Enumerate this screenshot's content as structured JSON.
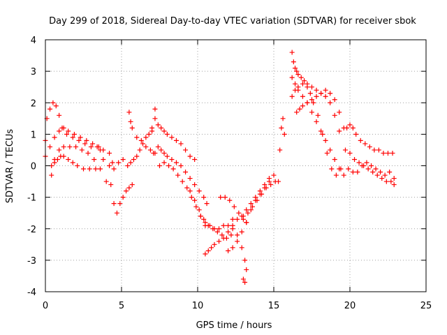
{
  "chart_data": {
    "type": "scatter",
    "title": "Day 299 of 2018, Sidereal Day-to-day VTEC variation (SDTVAR) for receiver sbok",
    "xlabel": "GPS time / hours",
    "ylabel": "SDTVAR / TECUs",
    "xlim": [
      0,
      25
    ],
    "ylim": [
      -4,
      4
    ],
    "xticks": [
      0,
      5,
      10,
      15,
      20,
      25
    ],
    "yticks": [
      -4,
      -3,
      -2,
      -1,
      0,
      1,
      2,
      3,
      4
    ],
    "grid": true,
    "marker": "+",
    "series": [
      {
        "name": "sbok",
        "color": "#ff0000",
        "x": [
          0.0,
          0.1,
          0.3,
          0.5,
          0.7,
          0.9,
          1.1,
          1.4,
          1.8,
          2.2,
          2.6,
          3.0,
          3.4,
          3.8,
          4.2,
          0.0,
          0.3,
          0.6,
          0.9,
          1.2,
          1.5,
          1.9,
          2.3,
          2.7,
          3.1,
          3.5,
          0.4,
          0.6,
          0.8,
          1.0,
          1.2,
          1.5,
          1.8,
          2.1,
          2.5,
          2.9,
          3.3,
          3.6,
          0.4,
          0.6,
          0.9,
          1.2,
          1.6,
          2.0,
          2.4,
          2.8,
          3.2,
          3.6,
          3.8,
          4.0,
          4.3,
          4.4,
          4.5,
          4.7,
          4.9,
          5.1,
          5.3,
          5.5,
          5.7,
          4.2,
          4.5,
          4.8,
          5.1,
          5.4,
          5.6,
          5.8,
          6.0,
          6.2,
          6.4,
          6.6,
          6.8,
          7.0,
          5.5,
          5.6,
          5.7,
          6.0,
          6.3,
          6.6,
          6.9,
          7.1,
          7.2,
          7.0,
          7.2,
          7.4,
          7.6,
          7.8,
          8.0,
          8.3,
          8.6,
          8.9,
          9.2,
          9.5,
          9.8,
          7.2,
          7.4,
          7.6,
          7.8,
          8.0,
          8.3,
          8.6,
          8.9,
          9.2,
          9.5,
          9.8,
          10.1,
          10.4,
          10.6,
          7.5,
          7.8,
          8.1,
          8.4,
          8.7,
          9.0,
          9.3,
          9.6,
          9.9,
          10.2,
          10.5,
          9.5,
          9.8,
          10.1,
          10.4,
          10.7,
          11.0,
          11.3,
          11.6,
          11.9,
          12.2,
          10.5,
          10.7,
          10.9,
          11.1,
          11.4,
          11.7,
          12.0,
          12.3,
          10.2,
          10.5,
          10.8,
          11.1,
          11.4,
          11.7,
          12.0,
          12.3,
          12.6,
          12.9,
          13.1,
          11.5,
          11.8,
          12.1,
          12.4,
          12.7,
          13.0,
          13.2,
          13.0,
          13.1,
          13.2,
          12.0,
          12.3,
          12.6,
          12.9,
          13.2,
          13.5,
          13.8,
          14.1,
          14.4,
          14.7,
          15.0,
          12.3,
          12.6,
          12.9,
          13.2,
          13.5,
          13.8,
          14.1,
          14.4,
          14.7,
          13.0,
          13.3,
          13.6,
          13.9,
          14.2,
          14.5,
          14.8,
          15.1,
          15.3,
          15.4,
          15.5,
          15.6,
          15.7,
          16.2,
          16.3,
          16.4,
          16.5,
          16.6,
          16.8,
          17.0,
          17.2,
          17.4,
          17.6,
          17.9,
          18.2,
          18.5,
          18.8,
          19.1,
          19.4,
          16.2,
          16.4,
          16.6,
          16.9,
          17.2,
          17.5,
          17.8,
          18.1,
          18.4,
          18.7,
          19.0,
          19.3,
          19.6,
          16.5,
          16.7,
          16.9,
          17.2,
          17.5,
          17.8,
          18.1,
          18.4,
          18.7,
          19.0,
          19.3,
          19.6,
          16.2,
          16.4,
          16.6,
          16.9,
          17.2,
          17.5,
          17.8,
          18.1,
          18.4,
          18.7,
          19.0,
          19.3,
          19.8,
          20.0,
          20.2,
          20.4,
          20.7,
          21.0,
          21.3,
          21.6,
          21.9,
          22.2,
          22.5,
          22.8,
          19.7,
          20.0,
          20.3,
          20.6,
          20.9,
          21.2,
          21.5,
          21.8,
          22.1,
          22.4,
          22.7,
          22.9,
          19.9,
          20.2,
          20.5,
          20.8,
          21.1,
          21.4,
          21.7,
          22.0,
          22.3,
          22.6,
          22.9
        ],
        "y": [
          0.8,
          1.5,
          1.8,
          2.0,
          1.9,
          1.6,
          1.2,
          1.0,
          0.9,
          0.8,
          0.7,
          0.6,
          0.6,
          0.5,
          0.4,
          0.3,
          0.6,
          0.9,
          1.1,
          1.2,
          1.1,
          1.0,
          0.9,
          0.8,
          0.7,
          0.6,
          0.0,
          0.1,
          0.2,
          0.3,
          0.3,
          0.2,
          0.1,
          0.0,
          -0.1,
          -0.1,
          -0.1,
          -0.1,
          -0.3,
          0.2,
          0.5,
          0.6,
          0.6,
          0.6,
          0.5,
          0.4,
          0.2,
          0.5,
          0.2,
          -0.5,
          -0.6,
          0.1,
          -1.2,
          -1.5,
          -1.2,
          -1.0,
          -0.8,
          -0.7,
          -0.6,
          0.0,
          -0.1,
          0.1,
          0.2,
          0.0,
          0.1,
          0.2,
          0.3,
          0.5,
          0.7,
          0.9,
          1.0,
          1.1,
          1.7,
          1.4,
          1.2,
          0.9,
          0.8,
          0.6,
          0.5,
          0.4,
          1.8,
          1.2,
          1.5,
          1.3,
          1.2,
          1.1,
          1.0,
          0.9,
          0.8,
          0.7,
          0.5,
          0.3,
          0.2,
          0.4,
          0.6,
          0.5,
          0.4,
          0.3,
          0.2,
          0.1,
          0.0,
          -0.2,
          -0.4,
          -0.6,
          -0.8,
          -1.0,
          -1.2,
          0.0,
          0.1,
          0.0,
          -0.1,
          -0.3,
          -0.5,
          -0.7,
          -1.0,
          -1.3,
          -1.6,
          -1.9,
          -0.8,
          -1.1,
          -1.4,
          -1.7,
          -1.9,
          -2.0,
          -2.1,
          -2.2,
          -2.3,
          -2.2,
          -2.8,
          -2.7,
          -2.6,
          -2.5,
          -2.4,
          -2.3,
          -2.1,
          -1.9,
          -1.6,
          -1.8,
          -1.9,
          -2.0,
          -2.0,
          -1.9,
          -1.9,
          -2.0,
          -2.2,
          -2.6,
          -3.0,
          -1.0,
          -1.0,
          -1.1,
          -1.3,
          -1.5,
          -1.7,
          -1.8,
          -3.6,
          -3.7,
          -3.3,
          -2.7,
          -2.6,
          -2.4,
          -2.1,
          -1.8,
          -1.4,
          -1.1,
          -0.9,
          -0.7,
          -0.5,
          -0.3,
          -1.7,
          -1.7,
          -1.6,
          -1.4,
          -1.2,
          -1.0,
          -0.8,
          -0.6,
          -0.4,
          -1.6,
          -1.5,
          -1.3,
          -1.1,
          -0.9,
          -0.7,
          -0.6,
          -0.5,
          -0.5,
          0.5,
          1.2,
          1.5,
          1.0,
          3.6,
          3.3,
          3.1,
          3.0,
          2.9,
          2.8,
          2.7,
          2.5,
          2.3,
          2.0,
          1.6,
          1.0,
          0.4,
          -0.1,
          -0.3,
          -0.1,
          2.8,
          2.6,
          2.4,
          2.2,
          2.0,
          1.7,
          1.4,
          1.1,
          0.8,
          0.5,
          0.2,
          -0.1,
          -0.3,
          1.7,
          1.8,
          1.9,
          2.0,
          2.1,
          2.2,
          2.3,
          2.4,
          2.3,
          2.1,
          1.7,
          1.2,
          2.2,
          2.4,
          2.5,
          2.6,
          2.6,
          2.5,
          2.4,
          2.3,
          2.2,
          2.0,
          1.6,
          1.1,
          1.2,
          1.3,
          1.2,
          1.0,
          0.8,
          0.7,
          0.6,
          0.5,
          0.5,
          0.4,
          0.4,
          0.4,
          0.5,
          0.4,
          0.2,
          0.1,
          0.0,
          -0.1,
          -0.2,
          -0.3,
          -0.4,
          -0.5,
          -0.5,
          -0.6,
          -0.1,
          -0.2,
          -0.2,
          0.0,
          0.1,
          0.0,
          -0.1,
          -0.2,
          -0.3,
          -0.2,
          -0.4
        ]
      }
    ]
  }
}
